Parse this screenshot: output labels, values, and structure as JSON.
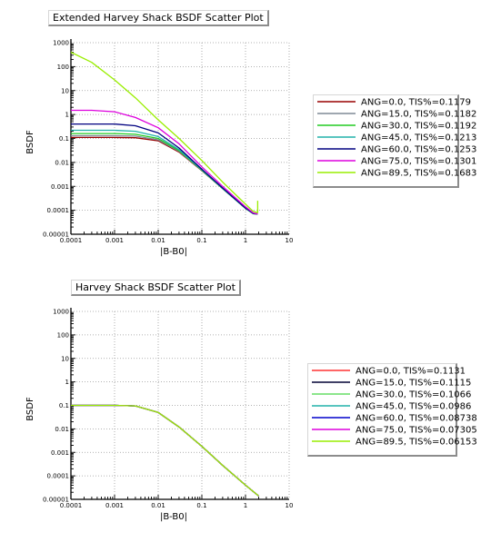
{
  "chart_data": [
    {
      "type": "line",
      "title": "Extended Harvey Shack BSDF Scatter Plot",
      "xlabel": "|B-B0|",
      "ylabel": "BSDF",
      "xscale": "log",
      "yscale": "log",
      "xlim": [
        0.0001,
        10
      ],
      "ylim": [
        1e-05,
        1000
      ],
      "x_ticks": [
        "0.0001",
        "0.001",
        "0.01",
        "0.1",
        "1",
        "10"
      ],
      "y_ticks": [
        "1000",
        "100",
        "10",
        "1",
        "0.1",
        "0.01",
        "0.001",
        "0.0001",
        "0.00001"
      ],
      "grid": true,
      "legend_position": "right",
      "series": [
        {
          "name": "ANG=0.0, TIS%=0.1179",
          "color": "#990000",
          "x": [
            0.0001,
            0.001,
            0.003,
            0.01,
            0.03,
            0.1,
            0.3,
            1,
            1.5,
            1.9
          ],
          "y": [
            0.11,
            0.11,
            0.107,
            0.08,
            0.027,
            0.0045,
            0.0008,
            0.00012,
            7.2e-05,
            7e-05
          ]
        },
        {
          "name": "ANG=15.0, TIS%=0.1182",
          "color": "#7f8a96",
          "x": [
            0.0001,
            0.001,
            0.003,
            0.01,
            0.03,
            0.1,
            0.3,
            1,
            1.5,
            1.9
          ],
          "y": [
            0.13,
            0.13,
            0.125,
            0.088,
            0.029,
            0.0046,
            0.0008,
            0.00012,
            7.2e-05,
            7e-05
          ]
        },
        {
          "name": "ANG=30.0, TIS%=0.1192",
          "color": "#22cc22",
          "x": [
            0.0001,
            0.001,
            0.003,
            0.01,
            0.03,
            0.1,
            0.3,
            1,
            1.5,
            1.9
          ],
          "y": [
            0.16,
            0.16,
            0.15,
            0.1,
            0.031,
            0.0047,
            0.0008,
            0.00012,
            7.2e-05,
            7e-05
          ]
        },
        {
          "name": "ANG=45.0, TIS%=0.1213",
          "color": "#20b2aa",
          "x": [
            0.0001,
            0.001,
            0.003,
            0.01,
            0.03,
            0.1,
            0.3,
            1,
            1.5,
            1.9
          ],
          "y": [
            0.22,
            0.22,
            0.2,
            0.12,
            0.034,
            0.0049,
            0.00082,
            0.00012,
            7.2e-05,
            7e-05
          ]
        },
        {
          "name": "ANG=60.0, TIS%=0.1253",
          "color": "#000080",
          "x": [
            0.0001,
            0.001,
            0.003,
            0.01,
            0.03,
            0.1,
            0.3,
            1,
            1.5,
            1.9
          ],
          "y": [
            0.4,
            0.4,
            0.34,
            0.17,
            0.04,
            0.0052,
            0.00085,
            0.000125,
            7.4e-05,
            7e-05
          ]
        },
        {
          "name": "ANG=75.0, TIS%=0.1301",
          "color": "#dd00dd",
          "x": [
            0.0001,
            0.0003,
            0.001,
            0.003,
            0.01,
            0.03,
            0.1,
            0.3,
            1,
            1.5,
            1.9
          ],
          "y": [
            1.5,
            1.5,
            1.3,
            0.75,
            0.28,
            0.06,
            0.0065,
            0.001,
            0.00014,
            7.8e-05,
            7e-05
          ]
        },
        {
          "name": "ANG=89.5, TIS%=0.1683",
          "color": "#99ee00",
          "x": [
            0.0001,
            0.0003,
            0.001,
            0.003,
            0.01,
            0.03,
            0.1,
            0.3,
            1,
            1.5,
            1.9,
            1.9,
            1.9
          ],
          "y": [
            400,
            150,
            28,
            5,
            0.6,
            0.1,
            0.012,
            0.0015,
            0.00018,
            9e-05,
            8e-05,
            0.0001,
            0.00025
          ]
        }
      ]
    },
    {
      "type": "line",
      "title": "Harvey Shack BSDF Scatter Plot",
      "xlabel": "|B-B0|",
      "ylabel": "BSDF",
      "xscale": "log",
      "yscale": "log",
      "xlim": [
        0.0001,
        10
      ],
      "ylim": [
        1e-05,
        1000
      ],
      "x_ticks": [
        "0.0001",
        "0.001",
        "0.01",
        "0.1",
        "1",
        "10"
      ],
      "y_ticks": [
        "1000",
        "100",
        "10",
        "1",
        "0.1",
        "0.01",
        "0.001",
        "0.0001",
        "0.00001"
      ],
      "grid": true,
      "legend_position": "right",
      "series": [
        {
          "name": "ANG=0.0, TIS%=0.1131",
          "color": "#ff3333",
          "x": [
            0.0001,
            0.001,
            0.003,
            0.01,
            0.03,
            0.1,
            0.3,
            1,
            2
          ],
          "y": [
            0.1,
            0.1,
            0.095,
            0.05,
            0.012,
            0.0018,
            0.00028,
            4e-05,
            1.4e-05
          ]
        },
        {
          "name": "ANG=15.0, TIS%=0.1115",
          "color": "#000033",
          "x": [
            0.0001,
            0.001,
            0.003,
            0.01,
            0.03,
            0.1,
            0.3,
            1,
            2
          ],
          "y": [
            0.1,
            0.1,
            0.095,
            0.05,
            0.012,
            0.0018,
            0.00028,
            4e-05,
            1.4e-05
          ]
        },
        {
          "name": "ANG=30.0, TIS%=0.1066",
          "color": "#66dd66",
          "x": [
            0.0001,
            0.001,
            0.003,
            0.01,
            0.03,
            0.1,
            0.3,
            1,
            2
          ],
          "y": [
            0.1,
            0.1,
            0.095,
            0.05,
            0.012,
            0.0018,
            0.00028,
            4e-05,
            1.4e-05
          ]
        },
        {
          "name": "ANG=45.0, TIS%=0.0986",
          "color": "#20b2aa",
          "x": [
            0.0001,
            0.001,
            0.003,
            0.01,
            0.03,
            0.1,
            0.3,
            1,
            2
          ],
          "y": [
            0.1,
            0.1,
            0.095,
            0.05,
            0.012,
            0.0018,
            0.00028,
            4e-05,
            1.4e-05
          ]
        },
        {
          "name": "ANG=60.0, TIS%=0.08738",
          "color": "#0000cc",
          "x": [
            0.0001,
            0.001,
            0.003,
            0.01,
            0.03,
            0.1,
            0.3,
            1,
            2
          ],
          "y": [
            0.1,
            0.1,
            0.095,
            0.05,
            0.012,
            0.0018,
            0.00028,
            4e-05,
            1.4e-05
          ]
        },
        {
          "name": "ANG=75.0, TIS%=0.07305",
          "color": "#dd00dd",
          "x": [
            0.0001,
            0.001,
            0.003,
            0.01,
            0.03,
            0.1,
            0.3,
            1,
            2
          ],
          "y": [
            0.1,
            0.1,
            0.095,
            0.05,
            0.012,
            0.0018,
            0.00028,
            4e-05,
            1.4e-05
          ]
        },
        {
          "name": "ANG=89.5, TIS%=0.06153",
          "color": "#99ee00",
          "x": [
            0.0001,
            0.001,
            0.003,
            0.01,
            0.03,
            0.1,
            0.3,
            1,
            2
          ],
          "y": [
            0.1,
            0.1,
            0.095,
            0.05,
            0.012,
            0.0018,
            0.00028,
            4e-05,
            1.4e-05
          ]
        }
      ]
    }
  ]
}
